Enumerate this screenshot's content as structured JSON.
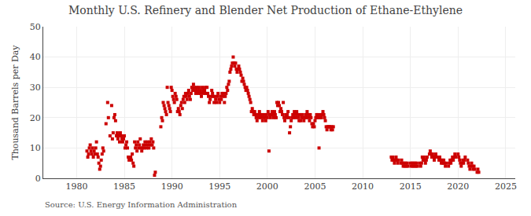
{
  "chart_data": {
    "type": "scatter",
    "title": "Monthly U.S. Refinery and Blender Net Production of Ethane-Ethylene",
    "ylabel": "Thousand Barrels per Day",
    "annotations": [
      "Source: U.S. Energy Information Administration"
    ],
    "color": "#cc0000",
    "marker": "square",
    "grid": true,
    "xlim": [
      1976.5,
      2026
    ],
    "xticks": [
      1980,
      1985,
      1990,
      1995,
      2000,
      2005,
      2010,
      2015,
      2020,
      2025
    ],
    "ylim": [
      0,
      50
    ],
    "yticks": [
      0,
      10,
      20,
      30,
      40,
      50
    ],
    "x": [
      1981.08,
      1981.17,
      1981.25,
      1981.33,
      1981.42,
      1981.5,
      1981.58,
      1981.67,
      1981.75,
      1981.83,
      1981.92,
      1982.0,
      1982.08,
      1982.17,
      1982.25,
      1982.33,
      1982.42,
      1982.5,
      1982.58,
      1982.67,
      1982.75,
      1982.83,
      1983.08,
      1983.25,
      1983.33,
      1983.5,
      1983.67,
      1983.75,
      1983.83,
      1983.92,
      1984.0,
      1984.08,
      1984.17,
      1984.25,
      1984.33,
      1984.42,
      1984.5,
      1984.58,
      1984.67,
      1984.75,
      1984.83,
      1984.92,
      1985.0,
      1985.08,
      1985.17,
      1985.25,
      1985.33,
      1985.42,
      1985.5,
      1985.58,
      1985.67,
      1985.75,
      1985.83,
      1985.92,
      1986.0,
      1986.08,
      1986.17,
      1986.25,
      1986.33,
      1986.42,
      1986.5,
      1986.58,
      1986.67,
      1986.75,
      1986.83,
      1986.92,
      1987.0,
      1987.08,
      1987.17,
      1987.25,
      1987.33,
      1987.42,
      1987.5,
      1987.58,
      1987.67,
      1987.75,
      1987.83,
      1987.92,
      1988.0,
      1988.08,
      1988.17,
      1988.25,
      1988.83,
      1988.92,
      1989.0,
      1989.08,
      1989.17,
      1989.25,
      1989.33,
      1989.42,
      1989.5,
      1989.58,
      1989.67,
      1989.75,
      1989.83,
      1989.92,
      1990.0,
      1990.08,
      1990.17,
      1990.25,
      1990.33,
      1990.42,
      1990.5,
      1990.58,
      1990.67,
      1990.75,
      1990.83,
      1990.92,
      1991.0,
      1991.08,
      1991.17,
      1991.25,
      1991.33,
      1991.42,
      1991.5,
      1991.58,
      1991.67,
      1991.75,
      1991.83,
      1991.92,
      1992.0,
      1992.08,
      1992.17,
      1992.25,
      1992.33,
      1992.42,
      1992.5,
      1992.58,
      1992.67,
      1992.75,
      1992.83,
      1992.92,
      1993.0,
      1993.08,
      1993.17,
      1993.25,
      1993.33,
      1993.42,
      1993.5,
      1993.58,
      1993.67,
      1993.75,
      1993.83,
      1993.92,
      1994.0,
      1994.08,
      1994.17,
      1994.25,
      1994.33,
      1994.42,
      1994.5,
      1994.58,
      1994.67,
      1994.75,
      1994.83,
      1994.92,
      1995.0,
      1995.08,
      1995.17,
      1995.25,
      1995.33,
      1995.42,
      1995.5,
      1995.58,
      1995.67,
      1995.75,
      1995.83,
      1995.92,
      1996.0,
      1996.08,
      1996.17,
      1996.25,
      1996.33,
      1996.42,
      1996.5,
      1996.58,
      1996.67,
      1996.75,
      1996.83,
      1996.92,
      1997.0,
      1997.08,
      1997.17,
      1997.25,
      1997.33,
      1997.42,
      1997.5,
      1997.58,
      1997.67,
      1997.75,
      1997.83,
      1997.92,
      1998.0,
      1998.08,
      1998.17,
      1998.25,
      1998.33,
      1998.42,
      1998.5,
      1998.58,
      1998.67,
      1998.75,
      1998.83,
      1998.92,
      1999.0,
      1999.08,
      1999.17,
      1999.25,
      1999.33,
      1999.42,
      1999.5,
      1999.58,
      1999.67,
      1999.75,
      1999.83,
      1999.92,
      2000.0,
      2000.08,
      2000.17,
      2000.25,
      2000.33,
      2000.42,
      2000.5,
      2000.58,
      2000.67,
      2000.75,
      2000.83,
      2000.92,
      2001.0,
      2001.08,
      2001.17,
      2001.25,
      2001.33,
      2001.42,
      2001.5,
      2001.58,
      2001.67,
      2001.75,
      2001.83,
      2001.92,
      2002.0,
      2002.08,
      2002.17,
      2002.25,
      2002.33,
      2002.42,
      2002.5,
      2002.58,
      2002.67,
      2002.75,
      2002.83,
      2002.92,
      2003.0,
      2003.08,
      2003.17,
      2003.25,
      2003.33,
      2003.42,
      2003.5,
      2003.58,
      2003.67,
      2003.75,
      2003.83,
      2003.92,
      2004.0,
      2004.08,
      2004.17,
      2004.25,
      2004.33,
      2004.42,
      2004.5,
      2004.58,
      2004.67,
      2004.75,
      2004.83,
      2004.92,
      2005.0,
      2005.08,
      2005.17,
      2005.25,
      2005.33,
      2005.42,
      2005.5,
      2005.58,
      2005.67,
      2005.75,
      2005.83,
      2005.92,
      2006.0,
      2006.08,
      2006.17,
      2006.25,
      2006.33,
      2006.42,
      2006.5,
      2006.58,
      2006.67,
      2006.75,
      2006.83,
      2006.92,
      2013.0,
      2013.08,
      2013.17,
      2013.25,
      2013.33,
      2013.42,
      2013.5,
      2013.58,
      2013.67,
      2013.75,
      2014.0,
      2014.08,
      2014.17,
      2014.25,
      2014.33,
      2014.42,
      2014.5,
      2014.58,
      2014.67,
      2014.75,
      2015.0,
      2015.08,
      2015.17,
      2015.25,
      2015.33,
      2015.42,
      2015.5,
      2015.58,
      2015.67,
      2015.75,
      2016.0,
      2016.08,
      2016.17,
      2016.25,
      2016.33,
      2016.42,
      2016.5,
      2016.58,
      2016.67,
      2016.75,
      2017.0,
      2017.08,
      2017.17,
      2017.25,
      2017.33,
      2017.42,
      2017.5,
      2017.58,
      2017.67,
      2017.75,
      2018.0,
      2018.08,
      2018.17,
      2018.25,
      2018.33,
      2018.42,
      2018.5,
      2018.58,
      2018.67,
      2018.75,
      2019.0,
      2019.08,
      2019.17,
      2019.25,
      2019.33,
      2019.42,
      2019.5,
      2019.58,
      2019.67,
      2019.75,
      2020.0,
      2020.08,
      2020.17,
      2020.25,
      2020.33,
      2020.42,
      2020.5,
      2020.58,
      2020.67,
      2020.75,
      2021.0,
      2021.08,
      2021.17,
      2021.25,
      2021.33,
      2021.42,
      2021.5,
      2021.58,
      2021.67,
      2021.75,
      2022.0,
      2022.08,
      2022.17
    ],
    "values": [
      9,
      7,
      8,
      10,
      11,
      9,
      8,
      10,
      7,
      9,
      8,
      10,
      12,
      8,
      7,
      5,
      3,
      4,
      6,
      8,
      10,
      9,
      18,
      25,
      20,
      14,
      24,
      13,
      15,
      20,
      21,
      19,
      14,
      15,
      13,
      14,
      12,
      15,
      14,
      13,
      12,
      13,
      14,
      10,
      11,
      12,
      10,
      7,
      6,
      7,
      7,
      6,
      8,
      5,
      4,
      12,
      10,
      11,
      9,
      12,
      10,
      11,
      13,
      10,
      9,
      10,
      11,
      10,
      12,
      11,
      10,
      12,
      11,
      10,
      12,
      11,
      13,
      11,
      12,
      10,
      1,
      2,
      17,
      20,
      19,
      25,
      24,
      23,
      22,
      21,
      30,
      25,
      24,
      23,
      22,
      30,
      29,
      27,
      26,
      25,
      28,
      27,
      26,
      22,
      23,
      22,
      21,
      24,
      25,
      23,
      26,
      27,
      25,
      28,
      27,
      26,
      28,
      29,
      27,
      26,
      28,
      30,
      29,
      31,
      30,
      29,
      28,
      30,
      29,
      28,
      30,
      29,
      28,
      27,
      30,
      29,
      28,
      29,
      30,
      28,
      30,
      28,
      27,
      25,
      26,
      27,
      29,
      28,
      27,
      25,
      27,
      26,
      25,
      27,
      28,
      26,
      25,
      27,
      26,
      28,
      27,
      28,
      25,
      27,
      28,
      30,
      29,
      31,
      32,
      35,
      36,
      37,
      38,
      40,
      38,
      37,
      38,
      36,
      35,
      36,
      37,
      36,
      35,
      34,
      32,
      33,
      32,
      31,
      30,
      29,
      30,
      29,
      28,
      27,
      26,
      25,
      22,
      23,
      22,
      21,
      22,
      21,
      20,
      19,
      21,
      20,
      22,
      21,
      20,
      21,
      19,
      20,
      21,
      20,
      19,
      21,
      20,
      22,
      9,
      21,
      20,
      21,
      22,
      21,
      20,
      22,
      21,
      20,
      25,
      24,
      25,
      24,
      22,
      23,
      22,
      21,
      25,
      20,
      19,
      21,
      20,
      21,
      22,
      20,
      15,
      17,
      19,
      20,
      21,
      20,
      22,
      21,
      20,
      22,
      21,
      20,
      19,
      21,
      19,
      20,
      21,
      20,
      19,
      20,
      21,
      20,
      22,
      21,
      20,
      19,
      21,
      20,
      18,
      17,
      18,
      17,
      19,
      20,
      21,
      20,
      21,
      10,
      20,
      21,
      20,
      21,
      22,
      21,
      20,
      19,
      17,
      16,
      17,
      17,
      17,
      17,
      16,
      17,
      16,
      17,
      7,
      6,
      7,
      6,
      5,
      6,
      7,
      6,
      5,
      6,
      5,
      6,
      5,
      4,
      5,
      4,
      5,
      4,
      5,
      4,
      5,
      4,
      5,
      4,
      5,
      4,
      5,
      4,
      5,
      4,
      5,
      4,
      5,
      7,
      6,
      7,
      6,
      5,
      6,
      7,
      8,
      9,
      8,
      7,
      8,
      7,
      6,
      7,
      8,
      7,
      6,
      7,
      6,
      5,
      6,
      5,
      6,
      5,
      4,
      5,
      4,
      5,
      6,
      5,
      6,
      7,
      6,
      7,
      8,
      7,
      8,
      7,
      6,
      5,
      4,
      5,
      6,
      5,
      6,
      7,
      6,
      5,
      4,
      3,
      4,
      5,
      4,
      3,
      4,
      3,
      2,
      3,
      2
    ]
  }
}
